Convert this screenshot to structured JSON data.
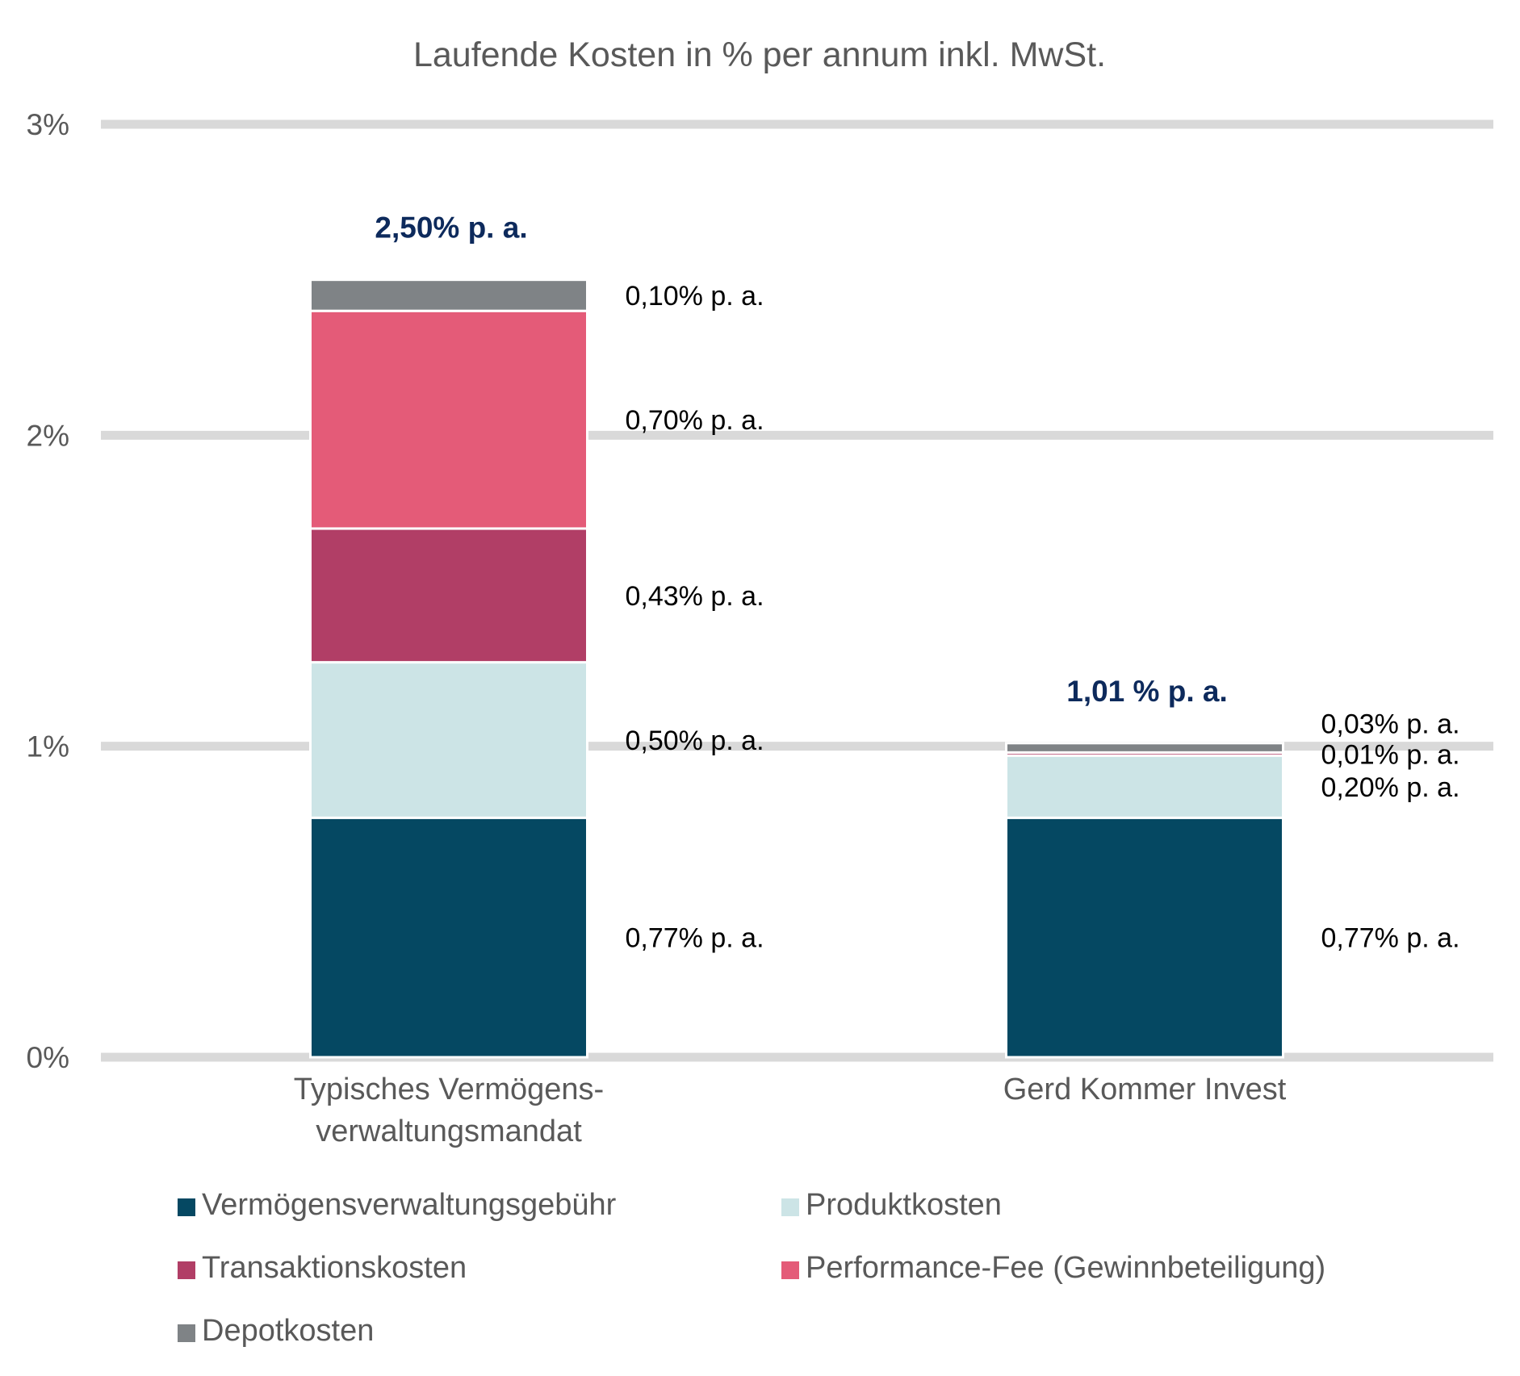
{
  "chart_data": {
    "type": "bar",
    "stacked": true,
    "title": "Laufende Kosten in % per annum inkl. MwSt.",
    "xlabel": "",
    "ylabel": "",
    "ylim": [
      0,
      3
    ],
    "y_ticks": [
      {
        "value": 0,
        "label": "0%"
      },
      {
        "value": 1,
        "label": "1%"
      },
      {
        "value": 2,
        "label": "2%"
      },
      {
        "value": 3,
        "label": "3%"
      }
    ],
    "grid": true,
    "legend_position": "bottom",
    "categories": [
      [
        "Typisches Vermögens-",
        "verwaltungsmandat"
      ],
      [
        "Gerd Kommer Invest"
      ]
    ],
    "series": [
      {
        "name": "Vermögensverwaltungsgebühr",
        "color": "#054862",
        "values": [
          0.77,
          0.77
        ],
        "labels": [
          "0,77% p. a.",
          "0,77% p. a."
        ]
      },
      {
        "name": "Produktkosten",
        "color": "#cce4e6",
        "values": [
          0.5,
          0.2
        ],
        "labels": [
          "0,50% p. a.",
          "0,20% p. a."
        ]
      },
      {
        "name": "Transaktionskosten",
        "color": "#b13e66",
        "values": [
          0.43,
          0.01
        ],
        "labels": [
          "0,43% p. a.",
          "0,01% p. a."
        ]
      },
      {
        "name": "Performance-Fee (Gewinnbeteiligung)",
        "color": "#e45b78",
        "values": [
          0.7,
          0
        ],
        "labels": [
          "0,70% p. a.",
          ""
        ]
      },
      {
        "name": "Depotkosten",
        "color": "#7f8386",
        "values": [
          0.1,
          0.03
        ],
        "labels": [
          "0,10% p. a.",
          "0,03% p. a."
        ]
      }
    ],
    "totals": [
      {
        "value": 2.5,
        "label": "2,50% p. a."
      },
      {
        "value": 1.01,
        "label": "1,01 % p. a."
      }
    ]
  }
}
